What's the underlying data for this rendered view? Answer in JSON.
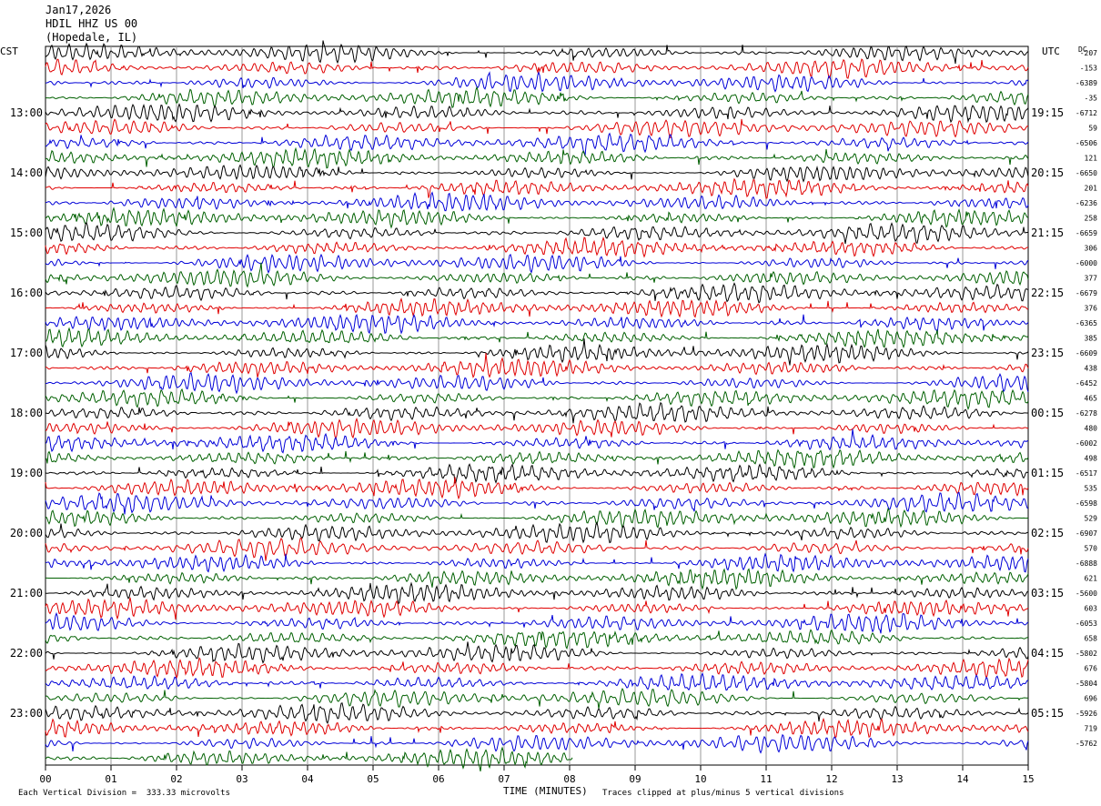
{
  "header": {
    "date": "Jan17,2026",
    "station": "HDIL HHZ US 00",
    "location": "(Hopedale, IL)"
  },
  "labels": {
    "left_timezone": "CST",
    "right_timezone": "UTC",
    "dc_header": "DC"
  },
  "footer": {
    "scale_note": "Each Vertical Division =  333.33 microvolts",
    "xaxis_title": "TIME (MINUTES)",
    "clip_note": "Traces clipped at plus/minus 5 vertical divisions"
  },
  "colors": {
    "trace_cycle": [
      "#000000",
      "#e00000",
      "#0000d8",
      "#006000"
    ],
    "gridline": "#9a9a9a"
  },
  "chart_data": {
    "type": "line",
    "title": "HDIL HHZ US 00 (Hopedale, IL) — Jan17,2026",
    "xlabel": "TIME (MINUTES)",
    "xlim": [
      0,
      15
    ],
    "x_ticks": [
      "00",
      "01",
      "02",
      "03",
      "04",
      "05",
      "06",
      "07",
      "08",
      "09",
      "10",
      "11",
      "12",
      "13",
      "14",
      "15"
    ],
    "trace_count": 48,
    "trace_minutes": 15,
    "last_trace_end_minute": 8.05,
    "left_hour_labels": [
      {
        "trace": 4,
        "label": "13:00"
      },
      {
        "trace": 8,
        "label": "14:00"
      },
      {
        "trace": 12,
        "label": "15:00"
      },
      {
        "trace": 16,
        "label": "16:00"
      },
      {
        "trace": 20,
        "label": "17:00"
      },
      {
        "trace": 24,
        "label": "18:00"
      },
      {
        "trace": 28,
        "label": "19:00"
      },
      {
        "trace": 32,
        "label": "20:00"
      },
      {
        "trace": 36,
        "label": "21:00"
      },
      {
        "trace": 40,
        "label": "22:00"
      },
      {
        "trace": 44,
        "label": "23:00"
      }
    ],
    "right_hour_labels": [
      {
        "trace": 4,
        "label": "19:15"
      },
      {
        "trace": 8,
        "label": "20:15"
      },
      {
        "trace": 12,
        "label": "21:15"
      },
      {
        "trace": 16,
        "label": "22:15"
      },
      {
        "trace": 20,
        "label": "23:15"
      },
      {
        "trace": 24,
        "label": "00:15"
      },
      {
        "trace": 28,
        "label": "01:15"
      },
      {
        "trace": 32,
        "label": "02:15"
      },
      {
        "trace": 36,
        "label": "03:15"
      },
      {
        "trace": 40,
        "label": "04:15"
      },
      {
        "trace": 44,
        "label": "05:15"
      }
    ],
    "dc_offsets": [
      "-207",
      "-153",
      "-6389",
      "-35",
      "-6712",
      "59",
      "-6506",
      "121",
      "-6650",
      "201",
      "-6236",
      "258",
      "-6659",
      "306",
      "-6000",
      "377",
      "-6679",
      "376",
      "-6365",
      "385",
      "-6609",
      "438",
      "-6452",
      "465",
      "-6278",
      "480",
      "-6002",
      "498",
      "-6517",
      "535",
      "-6598",
      "529",
      "-6907",
      "570",
      "-6888",
      "621",
      "-5600",
      "603",
      "-6053",
      "658",
      "-5802",
      "676",
      "-5804",
      "696",
      "-5926",
      "719",
      "-5762"
    ],
    "scale_microvolts_per_division": 333.33,
    "clip_divisions": 5
  }
}
